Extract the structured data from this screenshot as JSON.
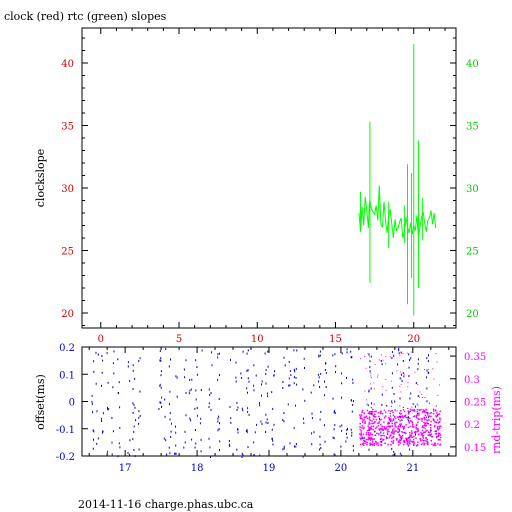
{
  "chart_data": [
    {
      "type": "line",
      "title": "clock (red) rtc (green) slopes",
      "ylabel": "clockslope",
      "xlim": [
        -1.2,
        22.7
      ],
      "ylim": [
        18.8,
        42.8
      ],
      "x_ticks": [
        0,
        5,
        10,
        15,
        20
      ],
      "y_ticks": [
        20,
        25,
        30,
        35,
        40
      ],
      "colors": {
        "clock": "#ff0000",
        "rtc": "#00ff00",
        "left_axis": "#cc0000",
        "right_axis": "#00cc00"
      },
      "series": [
        {
          "color": "#00ff00",
          "x": [
            16.5,
            16.6,
            16.7,
            16.8,
            16.9,
            17.0,
            17.1,
            17.15,
            17.2,
            17.3,
            17.4,
            17.5,
            17.6,
            17.7,
            17.8,
            17.9,
            18.0,
            18.1,
            18.2,
            18.3,
            18.4,
            18.5,
            18.6,
            18.7,
            18.8,
            18.9,
            19.0,
            19.1,
            19.2,
            19.3,
            19.4,
            19.5,
            19.6,
            19.7,
            19.8,
            19.9,
            20.0,
            20.1,
            20.2,
            20.3,
            20.4,
            20.5,
            20.6,
            20.7,
            20.8,
            20.9,
            21.0,
            21.1,
            21.2,
            21.3,
            21.4
          ],
          "y": [
            28.0,
            26.5,
            28.5,
            27.0,
            29.3,
            28.2,
            26.8,
            28.6,
            29.0,
            28.3,
            28.1,
            27.9,
            28.6,
            27.4,
            30.2,
            27.1,
            26.9,
            28.9,
            27.3,
            26.4,
            27.8,
            28.3,
            27.1,
            26.0,
            27.5,
            26.6,
            26.8,
            27.3,
            27.6,
            26.0,
            26.5,
            27.7,
            26.9,
            26.4,
            27.2,
            26.3,
            27.0,
            26.6,
            27.8,
            26.1,
            26.9,
            27.7,
            28.1,
            27.2,
            26.5,
            27.4,
            27.6,
            28.2,
            27.1,
            28.0,
            26.8
          ]
        }
      ],
      "spikes": [
        {
          "x": 16.6,
          "low": 26.5,
          "high": 29.7
        },
        {
          "x": 17.2,
          "low": 22.4,
          "high": 35.3
        },
        {
          "x": 18.4,
          "low": 25.2,
          "high": 28.9
        },
        {
          "x": 19.4,
          "low": 25.6,
          "high": 28.6
        },
        {
          "x": 19.6,
          "low": 20.7,
          "high": 31.9
        },
        {
          "x": 19.85,
          "low": 22.8,
          "high": 31.2
        },
        {
          "x": 20.0,
          "low": 19.8,
          "high": 41.5
        },
        {
          "x": 20.3,
          "low": 22.0,
          "high": 33.8
        },
        {
          "x": 20.55,
          "low": 25.8,
          "high": 29.2
        }
      ]
    },
    {
      "type": "scatter",
      "ylabel_left": "offset(ms)",
      "ylabel_right": "rnd-trip(ms)",
      "xlim": [
        16.4,
        21.6
      ],
      "ylim_left": [
        -0.2,
        0.2
      ],
      "ylim_right": [
        0.13,
        0.37
      ],
      "x_ticks": [
        17,
        18,
        19,
        20,
        21
      ],
      "y_ticks_left": [
        "-0.2",
        "-0.1",
        "0",
        "0.1",
        "0.2"
      ],
      "y_ticks_right": [
        "0.15",
        "0.2",
        "0.25",
        "0.3",
        "0.35"
      ],
      "colors": {
        "offset": "#0000cc",
        "rndtrip": "#ff00ff",
        "left_axis": "#0000cc",
        "right_axis": "#ff00ff"
      },
      "series": [
        {
          "color": "#0000cc",
          "x": [
            16.55,
            16.6,
            16.68,
            16.75,
            16.82,
            16.9,
            17.05,
            17.12,
            17.2,
            17.48,
            17.55,
            17.62,
            17.7,
            17.82,
            17.9,
            17.98,
            18.05,
            18.18,
            18.3,
            18.45,
            18.55,
            18.62,
            18.7,
            18.8,
            18.88,
            18.96,
            19.05,
            19.2,
            19.28,
            19.36,
            19.48,
            19.6,
            19.7,
            19.78,
            19.9,
            20.0,
            20.08,
            20.15,
            20.4,
            20.55,
            20.72,
            20.8,
            20.85,
            20.95,
            21.05,
            21.2
          ],
          "y": [
            0.17,
            -0.12,
            0.05,
            0.14,
            -0.08,
            0.02,
            -0.15,
            0.11,
            0.03,
            -0.17,
            0.16,
            -0.02,
            0.09,
            -0.1,
            0.18,
            -0.05,
            0.07,
            -0.14,
            0.12,
            0.0,
            -0.09,
            0.15,
            0.06,
            -0.16,
            0.1,
            -0.04,
            0.13,
            -0.11,
            0.04,
            0.19,
            -0.07,
            0.08,
            -0.13,
            0.01,
            0.16,
            -0.06,
            -0.18,
            0.1,
            0.12,
            -0.03,
            0.06,
            -0.08,
            0.15,
            -0.12,
            0.02,
            0.09
          ]
        },
        {
          "color": "#ff00ff",
          "x": [
            20.25,
            20.4,
            20.55,
            20.7,
            20.85,
            21.0,
            21.15,
            21.3,
            21.38
          ],
          "y": [
            0.2,
            0.19,
            0.205,
            0.185,
            0.2,
            0.195,
            0.19,
            0.205,
            0.2
          ]
        }
      ],
      "rndtrip_band": {
        "x_range": [
          20.25,
          21.38
        ],
        "ylim": [
          0.155,
          0.235
        ],
        "outliers_max": 0.36
      }
    }
  ],
  "footer": "2014-11-16 charge.phas.ubc.ca"
}
